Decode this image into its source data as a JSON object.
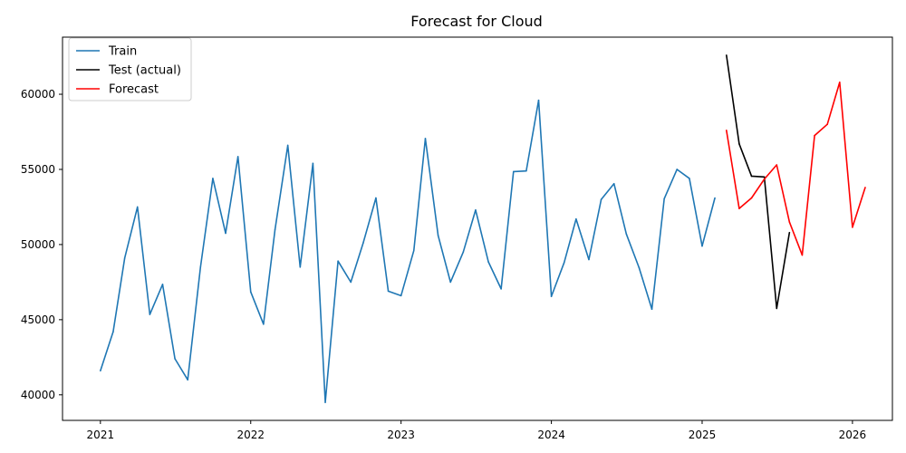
{
  "chart_data": {
    "type": "line",
    "title": "Forecast for Cloud",
    "xlabel": "",
    "ylabel": "",
    "x_axis": {
      "kind": "date",
      "range": [
        "2020-10-01",
        "2026-04-08"
      ],
      "ticks": [
        {
          "date": "2021-01-01",
          "label": "2021"
        },
        {
          "date": "2022-01-01",
          "label": "2022"
        },
        {
          "date": "2023-01-01",
          "label": "2023"
        },
        {
          "date": "2024-01-01",
          "label": "2024"
        },
        {
          "date": "2025-01-01",
          "label": "2025"
        },
        {
          "date": "2026-01-01",
          "label": "2026"
        }
      ]
    },
    "y_axis": {
      "range": [
        38300,
        63800
      ],
      "ticks": [
        40000,
        45000,
        50000,
        55000,
        60000
      ]
    },
    "grid": false,
    "legend": {
      "position": "top-left"
    },
    "series": [
      {
        "name": "Train",
        "color": "#1f77b4",
        "points": [
          [
            "2021-01-01",
            41600
          ],
          [
            "2021-02-01",
            44200
          ],
          [
            "2021-03-01",
            49100
          ],
          [
            "2021-04-01",
            52500
          ],
          [
            "2021-05-01",
            45350
          ],
          [
            "2021-06-01",
            47350
          ],
          [
            "2021-07-01",
            42400
          ],
          [
            "2021-08-01",
            41000
          ],
          [
            "2021-09-01",
            48500
          ],
          [
            "2021-10-01",
            54400
          ],
          [
            "2021-11-01",
            50750
          ],
          [
            "2021-12-01",
            55850
          ],
          [
            "2022-01-01",
            46850
          ],
          [
            "2022-02-01",
            44700
          ],
          [
            "2022-03-01",
            51000
          ],
          [
            "2022-04-01",
            56600
          ],
          [
            "2022-05-01",
            48500
          ],
          [
            "2022-06-01",
            55400
          ],
          [
            "2022-07-01",
            39500
          ],
          [
            "2022-08-01",
            48900
          ],
          [
            "2022-09-01",
            47500
          ],
          [
            "2022-10-01",
            50100
          ],
          [
            "2022-11-01",
            53100
          ],
          [
            "2022-12-01",
            46900
          ],
          [
            "2023-01-01",
            46600
          ],
          [
            "2023-02-01",
            49600
          ],
          [
            "2023-03-01",
            57050
          ],
          [
            "2023-04-01",
            50600
          ],
          [
            "2023-05-01",
            47500
          ],
          [
            "2023-06-01",
            49500
          ],
          [
            "2023-07-01",
            52300
          ],
          [
            "2023-08-01",
            48850
          ],
          [
            "2023-09-01",
            47050
          ],
          [
            "2023-10-01",
            54850
          ],
          [
            "2023-11-01",
            54900
          ],
          [
            "2023-12-01",
            59600
          ],
          [
            "2024-01-01",
            46550
          ],
          [
            "2024-02-01",
            48800
          ],
          [
            "2024-03-01",
            51700
          ],
          [
            "2024-04-01",
            49000
          ],
          [
            "2024-05-01",
            53000
          ],
          [
            "2024-06-01",
            54050
          ],
          [
            "2024-07-01",
            50700
          ],
          [
            "2024-08-01",
            48450
          ],
          [
            "2024-09-01",
            45700
          ],
          [
            "2024-10-01",
            53050
          ],
          [
            "2024-11-01",
            55000
          ],
          [
            "2024-12-01",
            54400
          ],
          [
            "2025-01-01",
            49900
          ],
          [
            "2025-02-01",
            53100
          ]
        ]
      },
      {
        "name": "Test (actual)",
        "color": "#000000",
        "points": [
          [
            "2025-03-01",
            62600
          ],
          [
            "2025-04-01",
            56700
          ],
          [
            "2025-05-01",
            54550
          ],
          [
            "2025-06-01",
            54500
          ],
          [
            "2025-07-01",
            45750
          ],
          [
            "2025-08-01",
            50800
          ]
        ]
      },
      {
        "name": "Forecast",
        "color": "#ff0000",
        "points": [
          [
            "2025-03-01",
            57600
          ],
          [
            "2025-04-01",
            52400
          ],
          [
            "2025-05-01",
            53100
          ],
          [
            "2025-06-01",
            54350
          ],
          [
            "2025-07-01",
            55300
          ],
          [
            "2025-08-01",
            51500
          ],
          [
            "2025-09-01",
            49300
          ],
          [
            "2025-10-01",
            57250
          ],
          [
            "2025-11-01",
            58000
          ],
          [
            "2025-12-01",
            60800
          ],
          [
            "2026-01-01",
            51150
          ],
          [
            "2026-02-01",
            53800
          ]
        ]
      }
    ]
  }
}
